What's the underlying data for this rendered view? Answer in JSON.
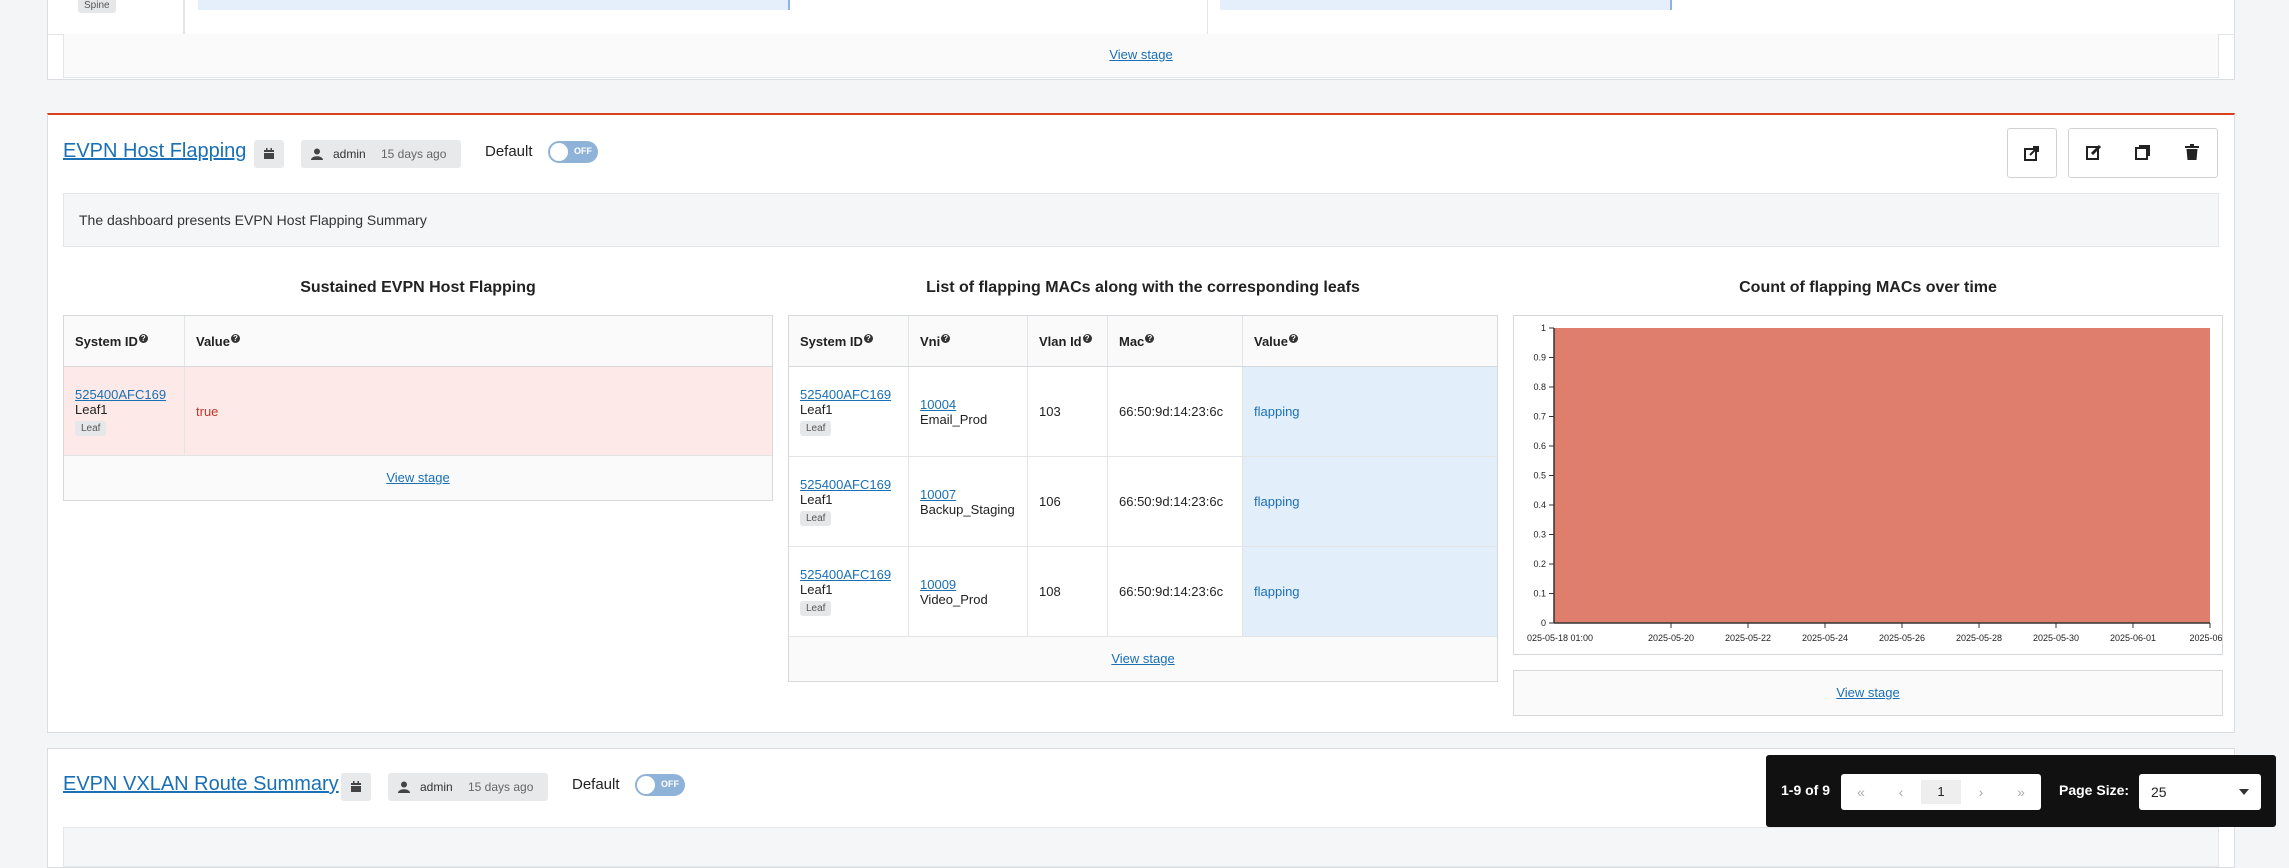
{
  "top_section": {
    "spine_badge": "Spine",
    "view_stage": "View stage"
  },
  "evpn_flapping": {
    "title": "EVPN Host Flapping",
    "user": "admin",
    "time": "15 days ago",
    "default_label": "Default",
    "toggle_text": "OFF",
    "description": "The dashboard presents EVPN Host Flapping Summary",
    "widget1": {
      "title": "Sustained EVPN Host Flapping",
      "headers": [
        "System ID",
        "Value"
      ],
      "row": {
        "system_id": "525400AFC169",
        "name": "Leaf1",
        "badge": "Leaf",
        "value": "true"
      },
      "view_stage": "View stage"
    },
    "widget2": {
      "title": "List of flapping MACs along with the corresponding leafs",
      "headers": [
        "System ID",
        "Vni",
        "Vlan Id",
        "Mac",
        "Value"
      ],
      "rows": [
        {
          "system_id": "525400AFC169",
          "name": "Leaf1",
          "badge": "Leaf",
          "vni": "10004",
          "vni_name": "Email_Prod",
          "vlan": "103",
          "mac": "66:50:9d:14:23:6c",
          "value": "flapping"
        },
        {
          "system_id": "525400AFC169",
          "name": "Leaf1",
          "badge": "Leaf",
          "vni": "10007",
          "vni_name": "Backup_Staging",
          "vlan": "106",
          "mac": "66:50:9d:14:23:6c",
          "value": "flapping"
        },
        {
          "system_id": "525400AFC169",
          "name": "Leaf1",
          "badge": "Leaf",
          "vni": "10009",
          "vni_name": "Video_Prod",
          "vlan": "108",
          "mac": "66:50:9d:14:23:6c",
          "value": "flapping"
        }
      ],
      "view_stage": "View stage"
    },
    "widget3": {
      "title": "Count of flapping MACs over time",
      "view_stage": "View stage"
    }
  },
  "chart_data": {
    "type": "area",
    "title": "Count of flapping MACs over time",
    "x_ticks": [
      "025-05-18 01:00",
      "2025-05-20",
      "2025-05-22",
      "2025-05-24",
      "2025-05-26",
      "2025-05-28",
      "2025-05-30",
      "2025-06-01",
      "2025-06-0"
    ],
    "y_ticks": [
      "0",
      "0.1",
      "0.2",
      "0.3",
      "0.4",
      "0.5",
      "0.6",
      "0.7",
      "0.8",
      "0.9",
      "1"
    ],
    "ylim": [
      0,
      1
    ],
    "series": [
      {
        "values": [
          1,
          1
        ]
      }
    ],
    "fill_color": "#df7e6c"
  },
  "vxlan": {
    "title": "EVPN VXLAN Route Summary",
    "user": "admin",
    "time": "15 days ago",
    "default_label": "Default",
    "toggle_text": "OFF"
  },
  "pagination": {
    "range": "1-9 of 9",
    "first": "«",
    "prev": "‹",
    "page": "1",
    "next": "›",
    "last": "»",
    "page_size_label": "Page Size:",
    "page_size": "25"
  }
}
